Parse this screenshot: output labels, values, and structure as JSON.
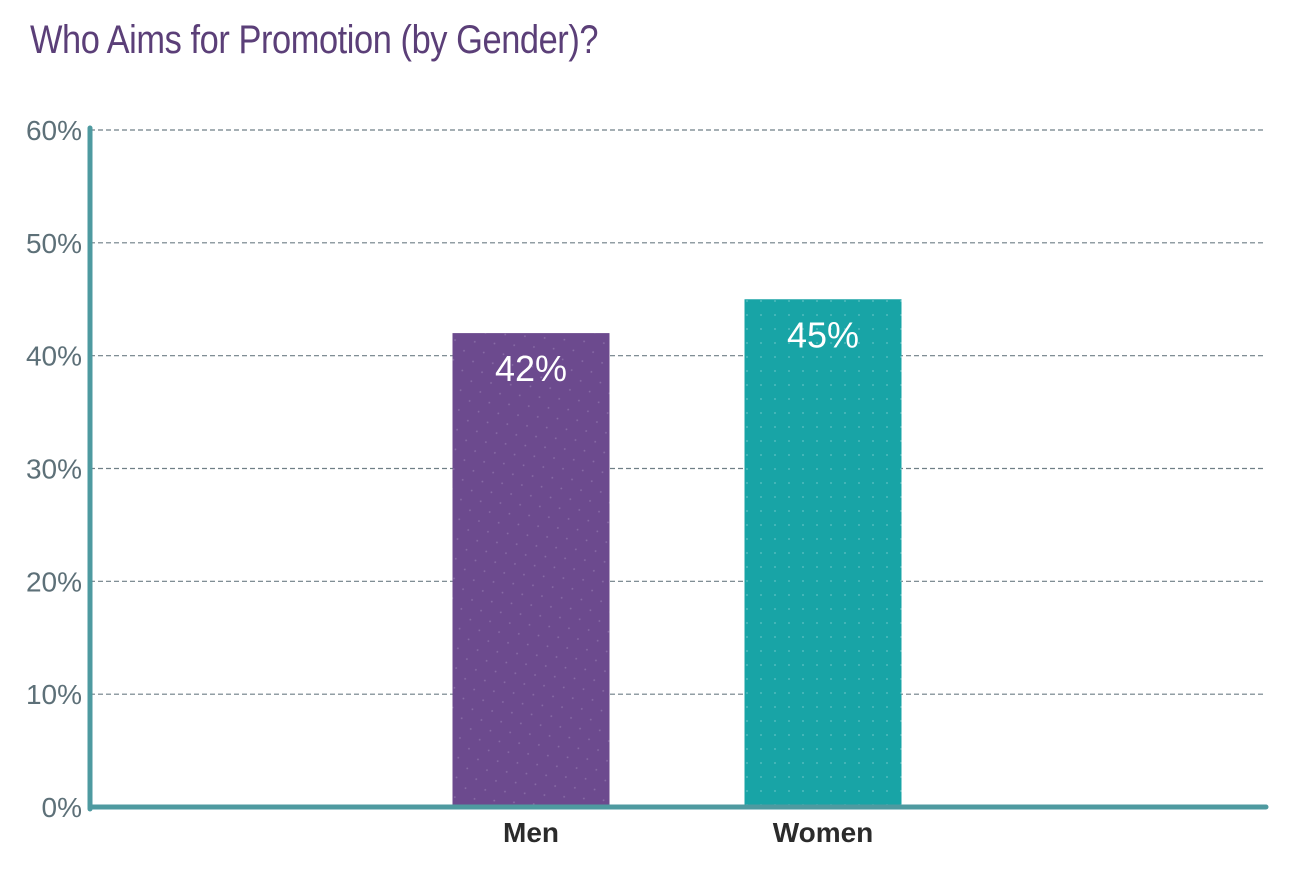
{
  "chart_data": {
    "type": "bar",
    "title": "Who Aims for Promotion (by Gender)?",
    "categories": [
      "Men",
      "Women"
    ],
    "values": [
      42,
      45
    ],
    "data_labels": [
      "42%",
      "45%"
    ],
    "colors": [
      "#6c4a8e",
      "#18a4a6"
    ],
    "ylim": [
      0,
      60
    ],
    "yticks": [
      0,
      10,
      20,
      30,
      40,
      50,
      60
    ],
    "ytick_labels": [
      "0%",
      "10%",
      "20%",
      "30%",
      "40%",
      "50%",
      "60%"
    ],
    "xlabel": "",
    "ylabel": "",
    "grid": true,
    "axis_color": "#4e9aa0"
  }
}
